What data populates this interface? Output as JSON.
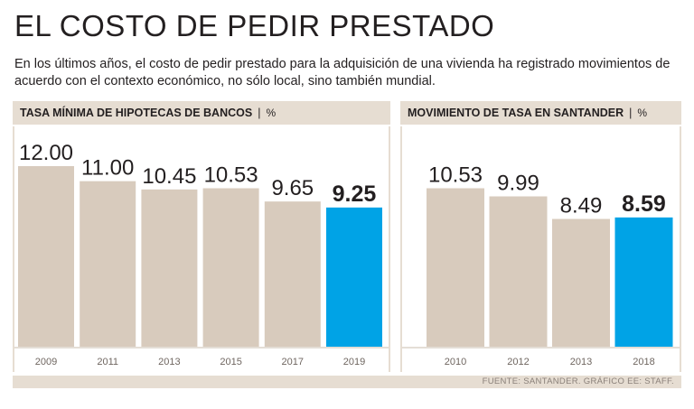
{
  "title": "EL COSTO DE PEDIR PRESTADO",
  "subtitle": "En los últimos años, el costo de pedir prestado para la adquisición de una vivienda ha registrado movimientos de acuerdo con el contexto económico, no sólo local, sino también mundial.",
  "colors": {
    "bar": "#d8cbbd",
    "highlight": "#00a3e6",
    "panel": "#e6ddd2",
    "text": "#231f20"
  },
  "chart_data": [
    {
      "type": "bar",
      "title": "TASA MÍNIMA DE HIPOTECAS DE BANCOS",
      "unit": "%",
      "categories": [
        "2009",
        "2011",
        "2013",
        "2015",
        "2017",
        "2019"
      ],
      "values": [
        12.0,
        11.0,
        10.45,
        10.53,
        9.65,
        9.25
      ],
      "labels": [
        "12.00",
        "11.00",
        "10.45",
        "10.53",
        "9.65",
        "9.25"
      ],
      "highlight_index": 5,
      "ylim": [
        0,
        14
      ]
    },
    {
      "type": "bar",
      "title": "MOVIMIENTO DE TASA EN SANTANDER",
      "unit": "%",
      "categories": [
        "2010",
        "2012",
        "2013",
        "2018"
      ],
      "values": [
        10.53,
        9.99,
        8.49,
        8.59
      ],
      "labels": [
        "10.53",
        "9.99",
        "8.49",
        "8.59"
      ],
      "highlight_index": 3,
      "ylim": [
        0,
        14
      ]
    }
  ],
  "source": "FUENTE: SANTANDER. GRÁFICO EE: STAFF."
}
